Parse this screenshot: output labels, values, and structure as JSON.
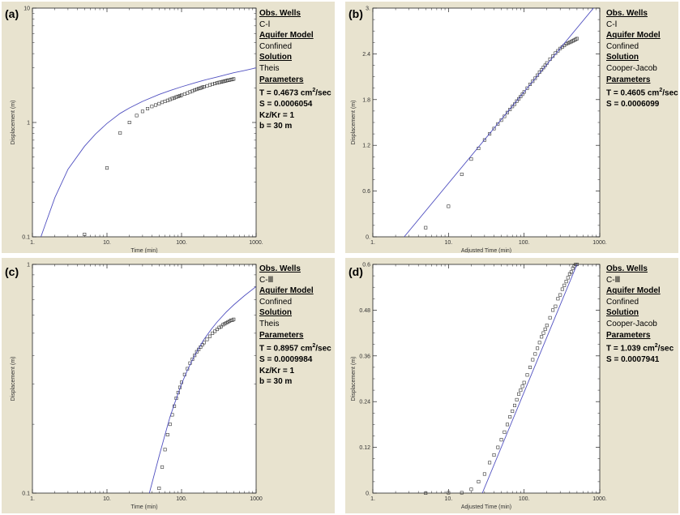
{
  "panels": [
    {
      "tag": "(a)",
      "legend": {
        "h1": "Obs. Wells",
        "well": "C-Ⅰ",
        "h2": "Aquifer Model",
        "model": "Confined",
        "h3": "Solution",
        "solution": "Theis",
        "h4": "Parameters",
        "T_pre": "T = 0.4673 cm",
        "T_sup": "2",
        "T_post": "/sec",
        "S": "S = 0.0006054",
        "extra1": "Kz/Kr = 1",
        "extra2": "b = 30 m"
      }
    },
    {
      "tag": "(b)",
      "legend": {
        "h1": "Obs. Wells",
        "well": "C-Ⅰ",
        "h2": "Aquifer Model",
        "model": "Confined",
        "h3": "Solution",
        "solution": "Cooper-Jacob",
        "h4": "Parameters",
        "T_pre": "T = 0.4605 cm",
        "T_sup": "2",
        "T_post": "/sec",
        "S": "S = 0.0006099"
      }
    },
    {
      "tag": "(c)",
      "legend": {
        "h1": "Obs. Wells",
        "well": "C-Ⅲ",
        "h2": "Aquifer Model",
        "model": "Confined",
        "h3": "Solution",
        "solution": "Theis",
        "h4": "Parameters",
        "T_pre": "T = 0.8957 cm",
        "T_sup": "2",
        "T_post": "/sec",
        "S": "S = 0.0009984",
        "extra1": "Kz/Kr = 1",
        "extra2": "b = 30 m"
      }
    },
    {
      "tag": "(d)",
      "legend": {
        "h1": "Obs. Wells",
        "well": "C-Ⅲ",
        "h2": "Aquifer Model",
        "model": "Confined",
        "h3": "Solution",
        "solution": "Cooper-Jacob",
        "h4": "Parameters",
        "T_pre": "T = 1.039 cm",
        "T_sup": "2",
        "T_post": "/sec",
        "S": "S = 0.0007941"
      }
    }
  ],
  "colors": {
    "panel_bg": "#e8e3cf",
    "plot_bg": "#ffffff",
    "curve": "#5050c0",
    "marker": "#333333"
  },
  "chart_data": [
    {
      "type": "scatter",
      "xscale": "log",
      "yscale": "log",
      "xlabel": "Time (min)",
      "ylabel": "Displacement (m)",
      "xlim": [
        1,
        1000
      ],
      "ylim": [
        0.1,
        10
      ],
      "xticks": [
        "1.",
        "10.",
        "100.",
        "1000."
      ],
      "yticks": [
        "0.1",
        "1",
        "10"
      ],
      "series": [
        {
          "kind": "observed",
          "x": [
            5,
            10,
            15,
            20,
            25,
            30,
            35,
            40,
            45,
            50,
            55,
            60,
            65,
            70,
            75,
            80,
            85,
            90,
            95,
            100,
            110,
            120,
            130,
            140,
            150,
            160,
            170,
            180,
            190,
            200,
            220,
            240,
            260,
            280,
            300,
            320,
            340,
            360,
            380,
            400,
            420,
            440,
            460,
            480,
            500
          ],
          "y": [
            0.105,
            0.4,
            0.81,
            1.0,
            1.15,
            1.25,
            1.32,
            1.38,
            1.42,
            1.46,
            1.5,
            1.53,
            1.56,
            1.59,
            1.62,
            1.64,
            1.67,
            1.69,
            1.71,
            1.73,
            1.77,
            1.81,
            1.85,
            1.88,
            1.92,
            1.95,
            1.98,
            2.0,
            2.03,
            2.05,
            2.09,
            2.13,
            2.16,
            2.19,
            2.22,
            2.24,
            2.26,
            2.28,
            2.3,
            2.32,
            2.34,
            2.35,
            2.37,
            2.38,
            2.4
          ]
        },
        {
          "kind": "fitted",
          "x": [
            1.3,
            1.5,
            2,
            3,
            5,
            7,
            10,
            15,
            20,
            30,
            50,
            70,
            100,
            150,
            200,
            300,
            500,
            700,
            1000
          ],
          "y": [
            0.1,
            0.13,
            0.22,
            0.39,
            0.62,
            0.79,
            0.98,
            1.2,
            1.34,
            1.53,
            1.76,
            1.9,
            2.05,
            2.22,
            2.34,
            2.5,
            2.72,
            2.85,
            3.0
          ]
        }
      ]
    },
    {
      "type": "scatter",
      "xscale": "log",
      "yscale": "linear",
      "xlabel": "Adjusted Time (min)",
      "ylabel": "Displacement (m)",
      "xlim": [
        1,
        1000
      ],
      "ylim": [
        0,
        3
      ],
      "xticks": [
        "1.",
        "10.",
        "100.",
        "1000."
      ],
      "yticks": [
        "0.",
        "0.6",
        "1.2",
        "1.8",
        "2.4",
        "3."
      ],
      "series": [
        {
          "kind": "observed",
          "x": [
            5,
            10,
            15,
            20,
            25,
            30,
            35,
            40,
            45,
            50,
            55,
            60,
            65,
            70,
            75,
            80,
            85,
            90,
            95,
            100,
            110,
            120,
            130,
            140,
            150,
            160,
            170,
            180,
            190,
            200,
            220,
            240,
            260,
            280,
            300,
            320,
            340,
            360,
            380,
            400,
            420,
            440,
            460,
            480,
            500
          ],
          "y": [
            0.12,
            0.4,
            0.82,
            1.02,
            1.16,
            1.27,
            1.35,
            1.42,
            1.48,
            1.53,
            1.58,
            1.63,
            1.67,
            1.71,
            1.74,
            1.78,
            1.81,
            1.84,
            1.87,
            1.9,
            1.95,
            2.0,
            2.04,
            2.08,
            2.12,
            2.16,
            2.19,
            2.22,
            2.25,
            2.28,
            2.33,
            2.37,
            2.41,
            2.44,
            2.47,
            2.49,
            2.51,
            2.53,
            2.54,
            2.55,
            2.56,
            2.57,
            2.58,
            2.59,
            2.6
          ]
        },
        {
          "kind": "fitted",
          "x": [
            2.6,
            1000
          ],
          "y": [
            0,
            3.1
          ]
        }
      ]
    },
    {
      "type": "scatter",
      "xscale": "log",
      "yscale": "log",
      "xlabel": "Time (min)",
      "ylabel": "Displacement (m)",
      "xlim": [
        1,
        1000
      ],
      "ylim": [
        0.1,
        1
      ],
      "xticks": [
        "1.",
        "10.",
        "100.",
        "1000"
      ],
      "yticks": [
        "0.1",
        "1"
      ],
      "series": [
        {
          "kind": "observed",
          "x": [
            50,
            55,
            60,
            65,
            70,
            75,
            80,
            85,
            90,
            95,
            100,
            110,
            120,
            130,
            140,
            150,
            160,
            170,
            180,
            190,
            200,
            220,
            240,
            260,
            280,
            300,
            320,
            340,
            360,
            380,
            400,
            420,
            440,
            460,
            480,
            500
          ],
          "y": [
            0.105,
            0.13,
            0.155,
            0.18,
            0.2,
            0.22,
            0.24,
            0.26,
            0.275,
            0.29,
            0.305,
            0.33,
            0.35,
            0.37,
            0.385,
            0.4,
            0.415,
            0.425,
            0.435,
            0.445,
            0.455,
            0.47,
            0.485,
            0.5,
            0.51,
            0.52,
            0.53,
            0.535,
            0.545,
            0.55,
            0.555,
            0.56,
            0.565,
            0.57,
            0.57,
            0.575
          ]
        },
        {
          "kind": "fitted",
          "x": [
            37,
            40,
            50,
            60,
            70,
            80,
            100,
            120,
            150,
            200,
            250,
            300,
            400,
            500,
            700,
            1000
          ],
          "y": [
            0.1,
            0.11,
            0.145,
            0.18,
            0.215,
            0.245,
            0.3,
            0.345,
            0.4,
            0.47,
            0.52,
            0.56,
            0.62,
            0.665,
            0.73,
            0.8
          ]
        }
      ]
    },
    {
      "type": "scatter",
      "xscale": "log",
      "yscale": "linear",
      "xlabel": "Adjusted Time (min)",
      "ylabel": "Displacement (m)",
      "xlim": [
        1,
        1000
      ],
      "ylim": [
        0,
        0.6
      ],
      "xticks": [
        "1.",
        "10.",
        "100.",
        "1000."
      ],
      "yticks": [
        "0.",
        "0.12",
        "0.24",
        "0.36",
        "0.48",
        "0.6"
      ],
      "series": [
        {
          "kind": "observed",
          "x": [
            5,
            10,
            15,
            20,
            25,
            30,
            35,
            40,
            45,
            50,
            55,
            60,
            65,
            70,
            75,
            80,
            85,
            90,
            95,
            100,
            110,
            120,
            130,
            140,
            150,
            160,
            170,
            180,
            190,
            200,
            220,
            240,
            260,
            280,
            300,
            320,
            340,
            360,
            380,
            400,
            420,
            440,
            460,
            480,
            500
          ],
          "y": [
            0,
            0.001,
            0.001,
            0.01,
            0.03,
            0.05,
            0.08,
            0.1,
            0.12,
            0.14,
            0.16,
            0.18,
            0.2,
            0.215,
            0.23,
            0.245,
            0.26,
            0.27,
            0.28,
            0.29,
            0.31,
            0.33,
            0.35,
            0.365,
            0.38,
            0.395,
            0.41,
            0.42,
            0.43,
            0.44,
            0.46,
            0.48,
            0.49,
            0.51,
            0.52,
            0.535,
            0.545,
            0.555,
            0.565,
            0.575,
            0.58,
            0.59,
            0.595,
            0.6,
            0.6
          ]
        },
        {
          "kind": "fitted",
          "x": [
            28,
            500
          ],
          "y": [
            0,
            0.6
          ]
        }
      ]
    }
  ]
}
